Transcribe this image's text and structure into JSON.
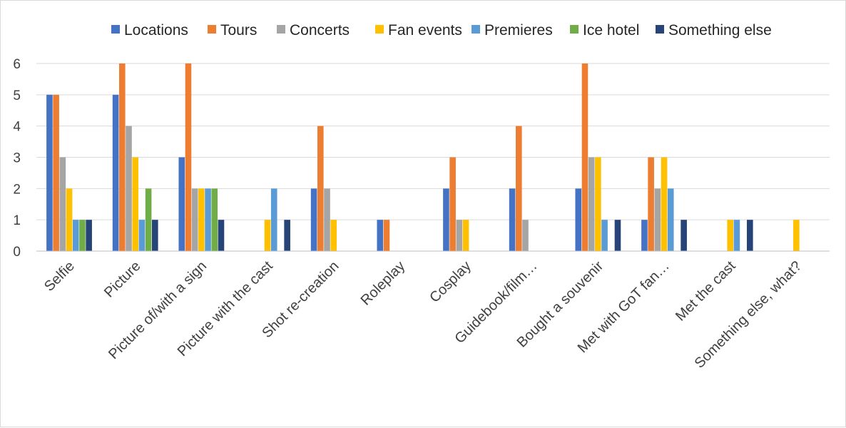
{
  "chart_data": {
    "type": "bar",
    "title": "",
    "xlabel": "",
    "ylabel": "",
    "ylim": [
      0,
      6
    ],
    "y_ticks": [
      "0",
      "1",
      "2",
      "3",
      "4",
      "5",
      "6"
    ],
    "grid": "horizontal",
    "legend_position": "top",
    "categories": [
      "Selfie",
      "Picture",
      "Picture of/with a sign",
      "Picture with the cast",
      "Shot re-creation",
      "Roleplay",
      "Cosplay",
      "Guidebook/film…",
      "Bought a souvenir",
      "Met with  GoT fan…",
      "Met the cast",
      "Something else, what?"
    ],
    "series": [
      {
        "name": "Locations",
        "color": "#4472C4",
        "values": [
          5,
          5,
          3,
          0,
          2,
          1,
          2,
          2,
          2,
          1,
          0,
          0
        ]
      },
      {
        "name": "Tours",
        "color": "#ED7D31",
        "values": [
          5,
          6,
          6,
          0,
          4,
          1,
          3,
          4,
          6,
          3,
          0,
          0
        ]
      },
      {
        "name": "Concerts",
        "color": "#A5A5A5",
        "values": [
          3,
          4,
          2,
          0,
          2,
          0,
          1,
          1,
          3,
          2,
          0,
          0
        ]
      },
      {
        "name": "Fan events",
        "color": "#FFC000",
        "values": [
          2,
          3,
          2,
          1,
          1,
          0,
          1,
          0,
          3,
          3,
          1,
          1
        ]
      },
      {
        "name": "Premieres",
        "color": "#5B9BD5",
        "values": [
          1,
          1,
          2,
          2,
          0,
          0,
          0,
          0,
          1,
          2,
          1,
          0
        ]
      },
      {
        "name": "Ice hotel",
        "color": "#70AD47",
        "values": [
          1,
          2,
          2,
          0,
          0,
          0,
          0,
          0,
          0,
          0,
          0,
          0
        ]
      },
      {
        "name": "Something else",
        "color": "#264478",
        "values": [
          1,
          1,
          1,
          1,
          0,
          0,
          0,
          0,
          1,
          1,
          1,
          0
        ]
      }
    ]
  }
}
